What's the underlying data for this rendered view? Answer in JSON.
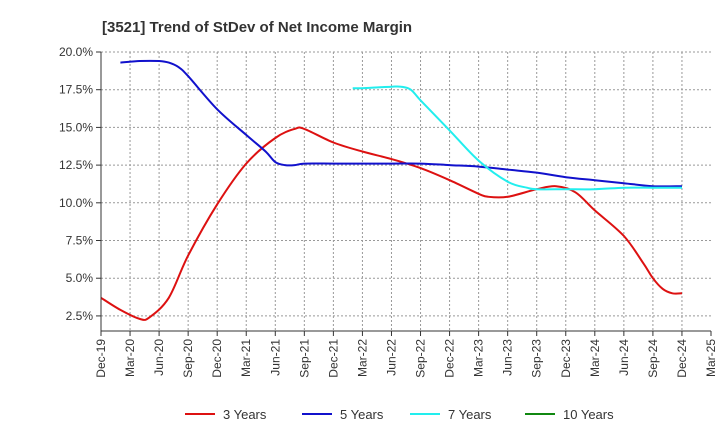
{
  "chart_data": {
    "type": "line",
    "title": "[3521]  Trend of StDev of Net Income Margin",
    "xlabel": "",
    "ylabel": "",
    "x_labels": [
      "Dec-19",
      "Mar-20",
      "Jun-20",
      "Sep-20",
      "Dec-20",
      "Mar-21",
      "Jun-21",
      "Sep-21",
      "Dec-21",
      "Mar-22",
      "Jun-22",
      "Sep-22",
      "Dec-22",
      "Mar-23",
      "Jun-23",
      "Sep-23",
      "Dec-23",
      "Mar-24",
      "Jun-24",
      "Sep-24",
      "Dec-24",
      "Mar-25"
    ],
    "y_ticks": [
      2.5,
      5.0,
      7.5,
      10.0,
      12.5,
      15.0,
      17.5,
      20.0
    ],
    "y_tick_labels": [
      "2.5%",
      "5.0%",
      "7.5%",
      "10.0%",
      "12.5%",
      "15.0%",
      "17.5%",
      "20.0%"
    ],
    "ylim": [
      1.5,
      20.0
    ],
    "grid": true,
    "legend_position": "bottom",
    "series": [
      {
        "name": "3 Years",
        "color": "#dd1111",
        "points": [
          [
            "Dec-19",
            3.7
          ],
          [
            "Feb-20",
            2.9
          ],
          [
            "Apr-20",
            2.3
          ],
          [
            "May-20",
            2.4
          ],
          [
            "Jul-20",
            3.7
          ],
          [
            "Sep-20",
            6.5
          ],
          [
            "Dec-20",
            9.9
          ],
          [
            "Mar-21",
            12.6
          ],
          [
            "Jun-21",
            14.3
          ],
          [
            "Aug-21",
            14.9
          ],
          [
            "Sep-21",
            14.9
          ],
          [
            "Dec-21",
            14.0
          ],
          [
            "Mar-22",
            13.4
          ],
          [
            "Jun-22",
            12.9
          ],
          [
            "Sep-22",
            12.3
          ],
          [
            "Dec-22",
            11.5
          ],
          [
            "Mar-23",
            10.6
          ],
          [
            "Apr-23",
            10.4
          ],
          [
            "Jun-23",
            10.4
          ],
          [
            "Sep-23",
            10.9
          ],
          [
            "Nov-23",
            11.1
          ],
          [
            "Jan-24",
            10.7
          ],
          [
            "Mar-24",
            9.5
          ],
          [
            "Jun-24",
            7.8
          ],
          [
            "Aug-24",
            6.0
          ],
          [
            "Sep-24",
            5.0
          ],
          [
            "Oct-24",
            4.3
          ],
          [
            "Nov-24",
            4.0
          ],
          [
            "Dec-24",
            4.0
          ]
        ]
      },
      {
        "name": "5 Years",
        "color": "#1111cc",
        "points": [
          [
            "Feb-20",
            19.3
          ],
          [
            "Apr-20",
            19.4
          ],
          [
            "Jun-20",
            19.4
          ],
          [
            "Jul-20",
            19.3
          ],
          [
            "Aug-20",
            19.0
          ],
          [
            "Sep-20",
            18.4
          ],
          [
            "Dec-20",
            16.2
          ],
          [
            "Mar-21",
            14.5
          ],
          [
            "May-21",
            13.4
          ],
          [
            "Jun-21",
            12.7
          ],
          [
            "Jul-21",
            12.5
          ],
          [
            "Aug-21",
            12.5
          ],
          [
            "Sep-21",
            12.6
          ],
          [
            "Dec-21",
            12.6
          ],
          [
            "Mar-22",
            12.6
          ],
          [
            "Jun-22",
            12.6
          ],
          [
            "Sep-22",
            12.6
          ],
          [
            "Dec-22",
            12.5
          ],
          [
            "Mar-23",
            12.4
          ],
          [
            "Jun-23",
            12.2
          ],
          [
            "Sep-23",
            12.0
          ],
          [
            "Dec-23",
            11.7
          ],
          [
            "Mar-24",
            11.5
          ],
          [
            "Jun-24",
            11.3
          ],
          [
            "Sep-24",
            11.1
          ],
          [
            "Dec-24",
            11.1
          ]
        ]
      },
      {
        "name": "7 Years",
        "color": "#22eeee",
        "points": [
          [
            "Feb-22",
            17.6
          ],
          [
            "Mar-22",
            17.6
          ],
          [
            "Jun-22",
            17.7
          ],
          [
            "Jul-22",
            17.7
          ],
          [
            "Aug-22",
            17.5
          ],
          [
            "Sep-22",
            16.8
          ],
          [
            "Dec-22",
            14.8
          ],
          [
            "Mar-23",
            12.8
          ],
          [
            "Jun-23",
            11.4
          ],
          [
            "Aug-23",
            11.0
          ],
          [
            "Sep-23",
            10.9
          ],
          [
            "Dec-23",
            10.9
          ],
          [
            "Mar-24",
            10.9
          ],
          [
            "Jun-24",
            11.0
          ],
          [
            "Sep-24",
            11.0
          ],
          [
            "Dec-24",
            11.0
          ]
        ]
      },
      {
        "name": "10 Years",
        "color": "#118811",
        "points": []
      }
    ]
  }
}
